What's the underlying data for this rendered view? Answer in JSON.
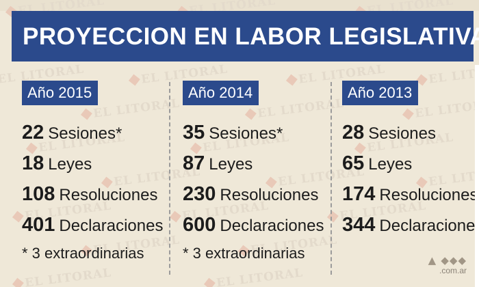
{
  "header": {
    "title": "PROYECCION EN LABOR LEGISLATIVA"
  },
  "watermark": {
    "text": "EL LITORAL"
  },
  "columns": [
    {
      "year_label": "Año 2015",
      "stats": [
        {
          "value": "22",
          "label": "Sesiones*"
        },
        {
          "value": "18",
          "label": "Leyes"
        },
        {
          "value": "108",
          "label": "Resoluciones"
        },
        {
          "value": "401",
          "label": "Declaraciones"
        }
      ],
      "note": "* 3 extraordinarias"
    },
    {
      "year_label": "Año 2014",
      "stats": [
        {
          "value": "35",
          "label": "Sesiones*"
        },
        {
          "value": "87",
          "label": "Leyes"
        },
        {
          "value": "230",
          "label": "Resoluciones"
        },
        {
          "value": "600",
          "label": "Declaraciones"
        }
      ],
      "note": "* 3 extraordinarias"
    },
    {
      "year_label": "Año 2013",
      "stats": [
        {
          "value": "28",
          "label": "Sesiones"
        },
        {
          "value": "65",
          "label": "Leyes"
        },
        {
          "value": "174",
          "label": "Resoluciones"
        },
        {
          "value": "344",
          "label": "Declaraciones"
        }
      ],
      "note": ""
    }
  ],
  "source": {
    "domain": ".com.ar"
  },
  "colors": {
    "header_bg": "#2b4a8c",
    "page_bg": "#efe8d8",
    "text": "#1c1c1c"
  }
}
